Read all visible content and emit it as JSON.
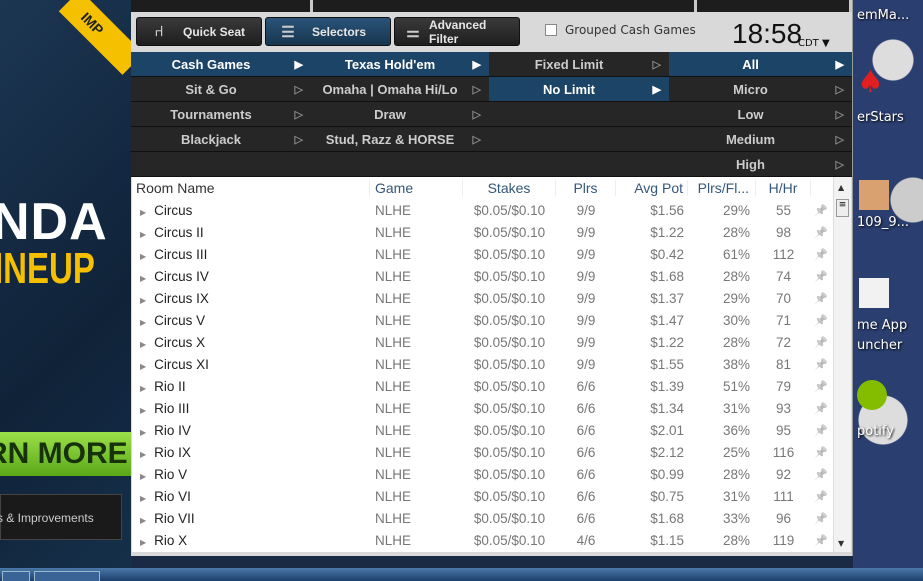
{
  "promo": {
    "ribbon": "IMP",
    "headline": "NDA",
    "subheadline": "INEUP",
    "learn_more": "RN MORE",
    "fixes": "s & Improvements"
  },
  "toolbar": {
    "quick_seat": "Quick Seat",
    "selectors": "Selectors",
    "advanced_filter": "Advanced Filter",
    "grouped_cash_games": "Grouped Cash Games",
    "grouped_checked": false,
    "time": "18:58",
    "timezone": "CDT ▼"
  },
  "menu": {
    "categories": [
      {
        "label": "Cash Games",
        "selected": true
      },
      {
        "label": "Sit & Go"
      },
      {
        "label": "Tournaments"
      },
      {
        "label": "Blackjack"
      },
      {
        "label": ""
      }
    ],
    "games": [
      {
        "label": "Texas Hold'em",
        "selected": true
      },
      {
        "label": "Omaha | Omaha Hi/Lo"
      },
      {
        "label": "Draw"
      },
      {
        "label": "Stud, Razz & HORSE"
      },
      {
        "label": ""
      }
    ],
    "limits": [
      {
        "label": "Fixed Limit"
      },
      {
        "label": "No Limit",
        "selected": true
      }
    ],
    "stakes": [
      {
        "label": "All",
        "selected": true
      },
      {
        "label": "Micro"
      },
      {
        "label": "Low"
      },
      {
        "label": "Medium"
      },
      {
        "label": "High"
      }
    ]
  },
  "table": {
    "columns": [
      "Room Name",
      "Game",
      "Stakes",
      "Plrs",
      "Avg Pot",
      "Plrs/Fl...",
      "H/Hr"
    ],
    "rows": [
      [
        "Circus",
        "NLHE",
        "$0.05/$0.10",
        "9/9",
        "$1.56",
        "29%",
        "55"
      ],
      [
        "Circus II",
        "NLHE",
        "$0.05/$0.10",
        "9/9",
        "$1.22",
        "28%",
        "98"
      ],
      [
        "Circus III",
        "NLHE",
        "$0.05/$0.10",
        "9/9",
        "$0.42",
        "61%",
        "112"
      ],
      [
        "Circus IV",
        "NLHE",
        "$0.05/$0.10",
        "9/9",
        "$1.68",
        "28%",
        "74"
      ],
      [
        "Circus IX",
        "NLHE",
        "$0.05/$0.10",
        "9/9",
        "$1.37",
        "29%",
        "70"
      ],
      [
        "Circus V",
        "NLHE",
        "$0.05/$0.10",
        "9/9",
        "$1.47",
        "30%",
        "71"
      ],
      [
        "Circus X",
        "NLHE",
        "$0.05/$0.10",
        "9/9",
        "$1.22",
        "28%",
        "72"
      ],
      [
        "Circus XI",
        "NLHE",
        "$0.05/$0.10",
        "9/9",
        "$1.55",
        "38%",
        "81"
      ],
      [
        "Rio II",
        "NLHE",
        "$0.05/$0.10",
        "6/6",
        "$1.39",
        "51%",
        "79"
      ],
      [
        "Rio III",
        "NLHE",
        "$0.05/$0.10",
        "6/6",
        "$1.34",
        "31%",
        "93"
      ],
      [
        "Rio IV",
        "NLHE",
        "$0.05/$0.10",
        "6/6",
        "$2.01",
        "36%",
        "95"
      ],
      [
        "Rio IX",
        "NLHE",
        "$0.05/$0.10",
        "6/6",
        "$2.12",
        "25%",
        "116"
      ],
      [
        "Rio V",
        "NLHE",
        "$0.05/$0.10",
        "6/6",
        "$0.99",
        "28%",
        "92"
      ],
      [
        "Rio VI",
        "NLHE",
        "$0.05/$0.10",
        "6/6",
        "$0.75",
        "31%",
        "111"
      ],
      [
        "Rio VII",
        "NLHE",
        "$0.05/$0.10",
        "6/6",
        "$1.68",
        "33%",
        "96"
      ],
      [
        "Rio X",
        "NLHE",
        "$0.05/$0.10",
        "4/6",
        "$1.15",
        "28%",
        "119"
      ]
    ]
  },
  "desktop": {
    "icons": [
      "emMa...",
      "erStars",
      "109_9...",
      "me App",
      "uncher",
      "potify"
    ]
  },
  "colors": {
    "selected": "#1c4466",
    "menu_bg": "#262626",
    "header_text": "#34577a"
  }
}
